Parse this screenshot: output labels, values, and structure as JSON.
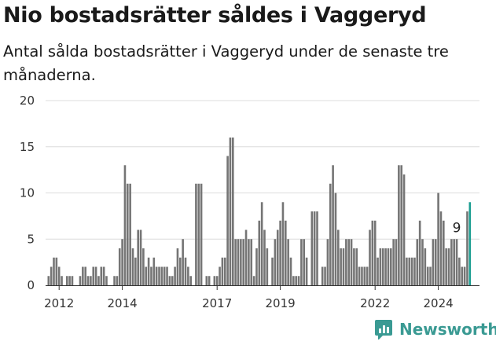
{
  "brand": {
    "name": "Newsworthy",
    "color": "#3a9a93"
  },
  "chart_data": {
    "type": "bar",
    "title": "Nio bostadsrätter såldes i Vaggeryd",
    "subtitle": "Antal sålda bostadsrätter i Vaggeryd under de senaste tre månaderna.",
    "xlabel": "",
    "ylabel": "",
    "ylim": [
      0,
      20
    ],
    "yticks": [
      0,
      5,
      10,
      15,
      20
    ],
    "grid": true,
    "x_start": "2011-09",
    "x_interval": "month",
    "xticks": [
      {
        "label": "2012",
        "index": 4
      },
      {
        "label": "2014",
        "index": 28
      },
      {
        "label": "2017",
        "index": 64
      },
      {
        "label": "2019",
        "index": 88
      },
      {
        "label": "2022",
        "index": 124
      },
      {
        "label": "2024",
        "index": 148
      }
    ],
    "bar_color": "#757575",
    "highlight_color": "#1c9e92",
    "annotation": {
      "text": "9",
      "index": 155
    },
    "values": [
      1,
      2,
      3,
      3,
      2,
      1,
      0,
      1,
      1,
      1,
      0,
      0,
      1,
      2,
      2,
      1,
      1,
      2,
      2,
      1,
      2,
      2,
      1,
      0,
      0,
      1,
      1,
      4,
      5,
      13,
      11,
      11,
      4,
      3,
      6,
      6,
      4,
      2,
      3,
      2,
      3,
      2,
      2,
      2,
      2,
      2,
      1,
      1,
      2,
      4,
      3,
      5,
      3,
      2,
      1,
      0,
      11,
      11,
      11,
      0,
      1,
      1,
      0,
      1,
      1,
      2,
      3,
      3,
      14,
      16,
      16,
      5,
      5,
      5,
      5,
      6,
      5,
      5,
      1,
      4,
      7,
      9,
      6,
      4,
      0,
      3,
      5,
      6,
      7,
      9,
      7,
      5,
      3,
      1,
      1,
      1,
      5,
      5,
      3,
      0,
      8,
      8,
      8,
      0,
      2,
      2,
      5,
      11,
      13,
      10,
      6,
      4,
      4,
      5,
      5,
      5,
      4,
      4,
      2,
      2,
      2,
      2,
      6,
      7,
      7,
      3,
      4,
      4,
      4,
      4,
      4,
      5,
      5,
      13,
      13,
      12,
      3,
      3,
      3,
      3,
      5,
      7,
      5,
      4,
      2,
      2,
      5,
      5,
      10,
      8,
      7,
      4,
      4,
      5,
      5,
      5,
      3,
      2,
      2,
      8,
      9
    ]
  }
}
